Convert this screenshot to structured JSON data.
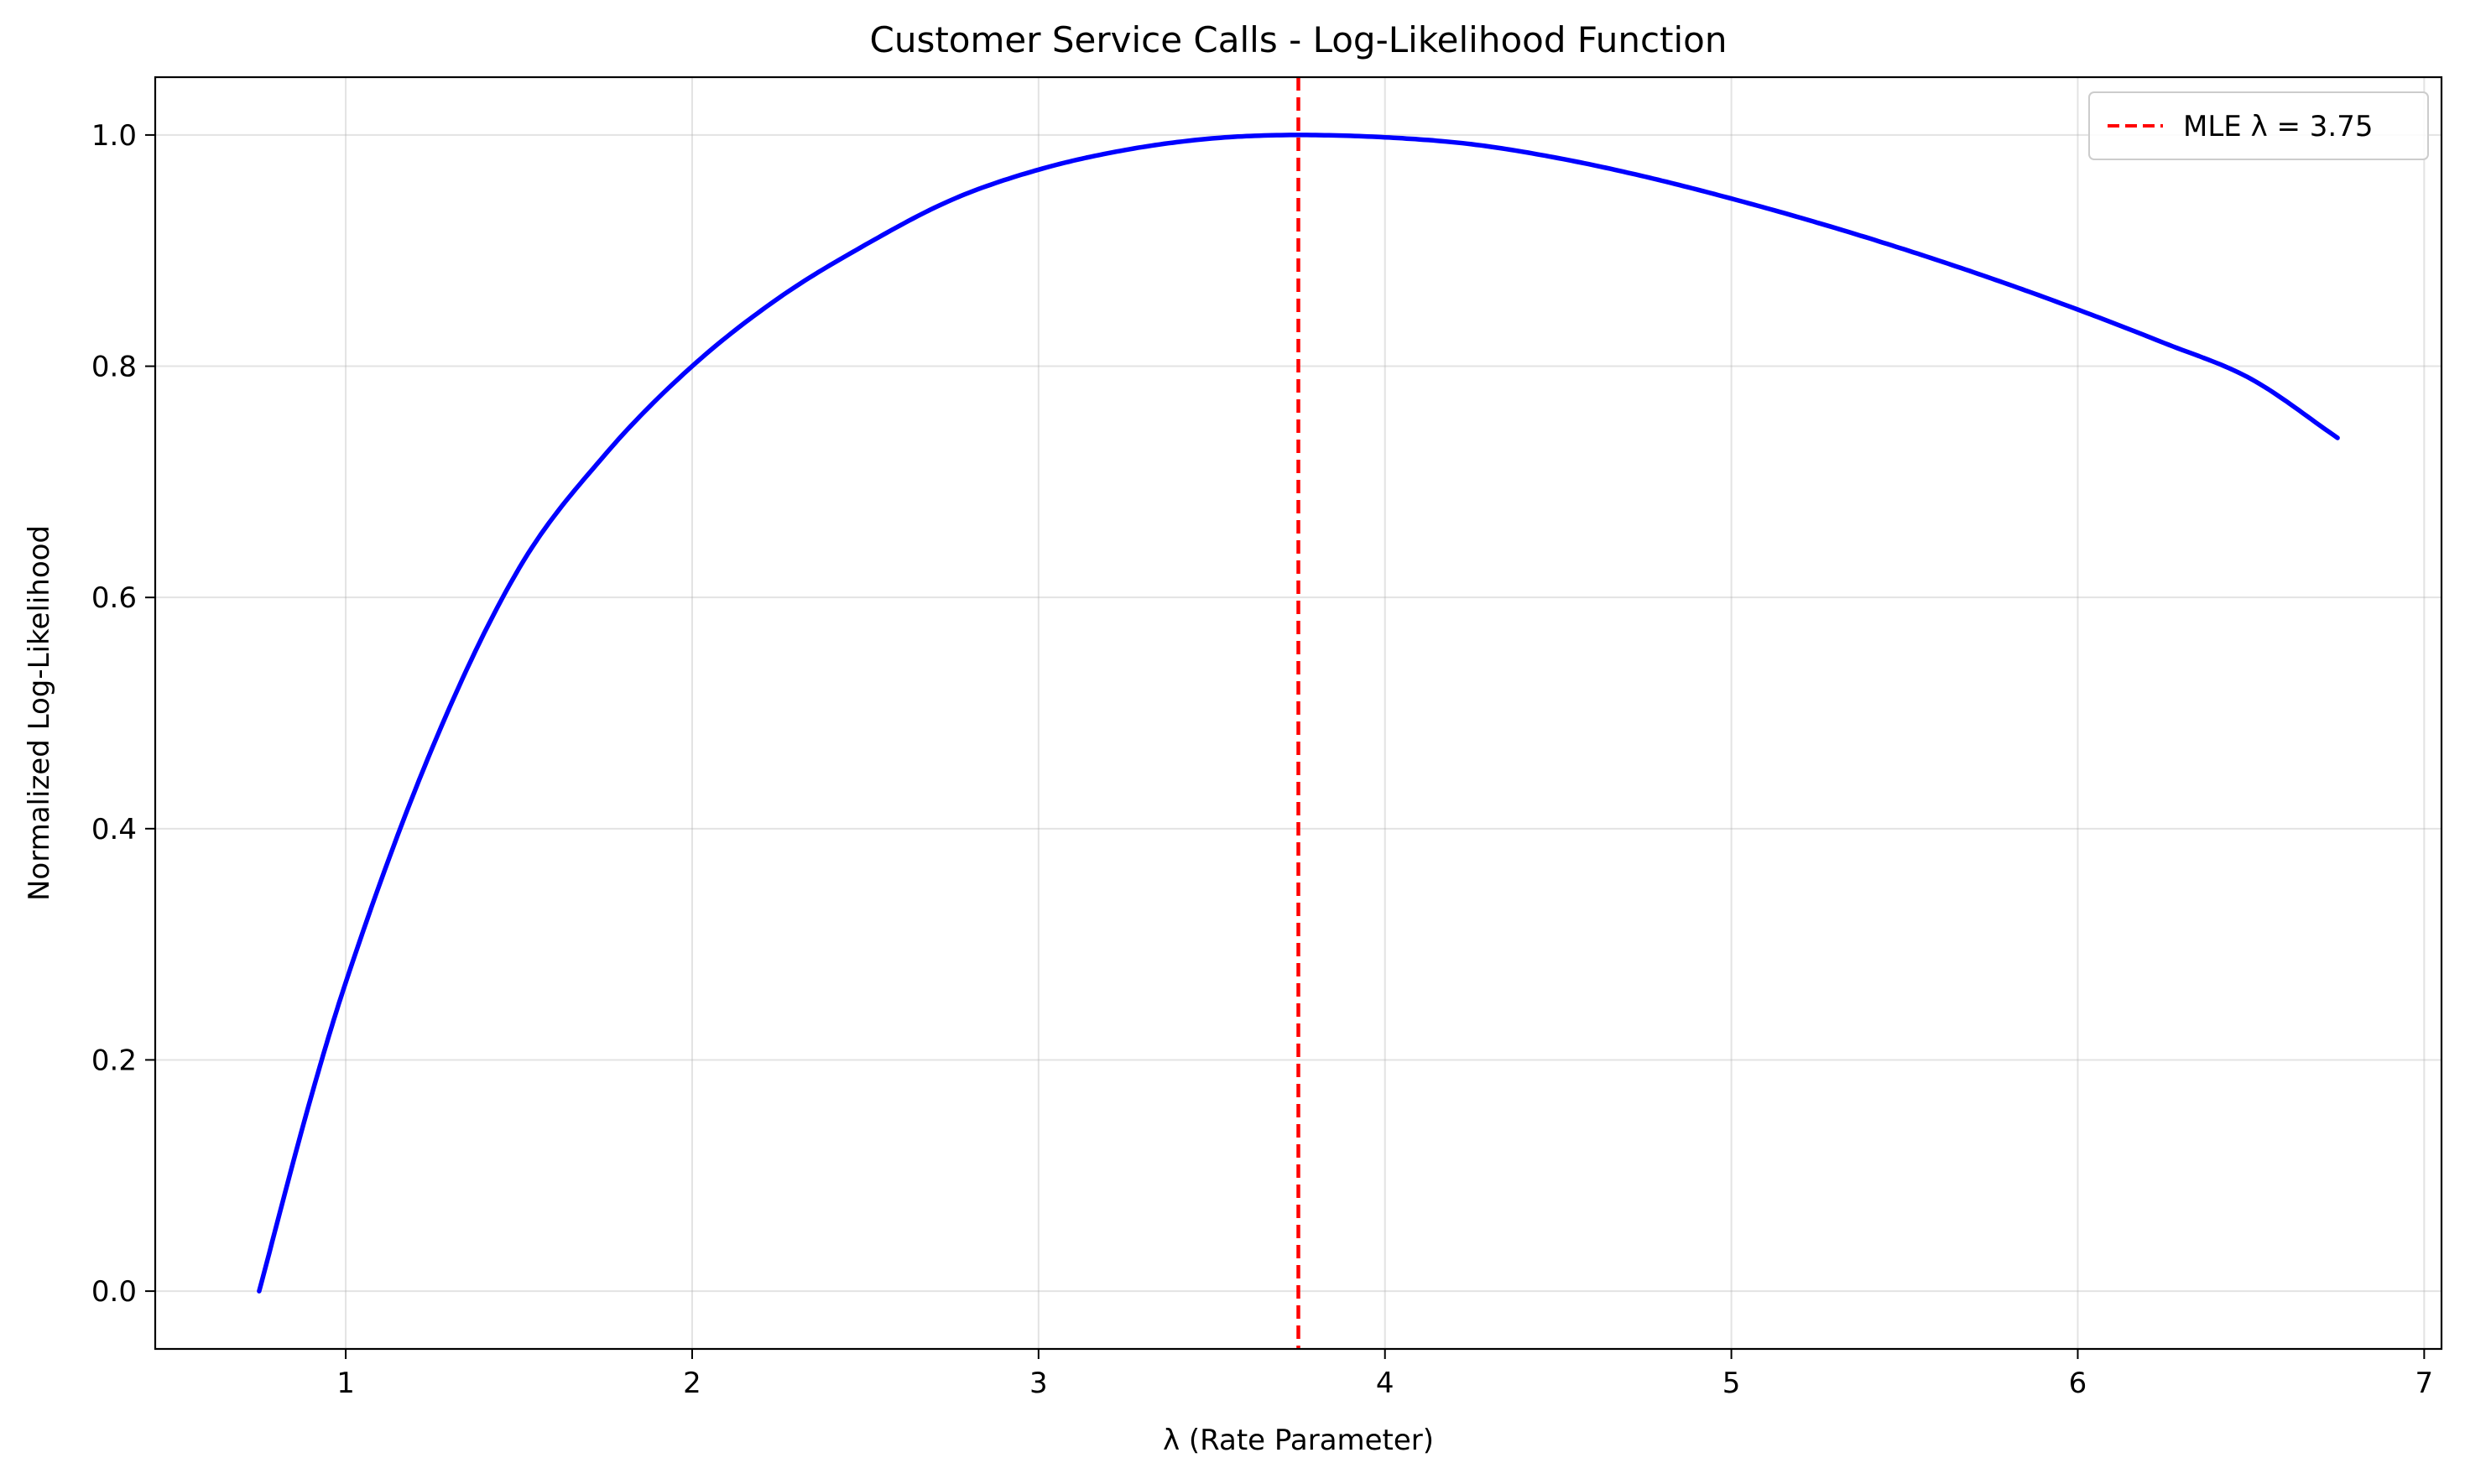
{
  "chart_data": {
    "type": "line",
    "title": "Customer Service Calls - Log-Likelihood Function",
    "xlabel": "λ (Rate Parameter)",
    "ylabel": "Normalized Log-Likelihood",
    "xlim": [
      0.45,
      7.05
    ],
    "ylim": [
      -0.05,
      1.05
    ],
    "xticks": [
      1,
      2,
      3,
      4,
      5,
      6,
      7
    ],
    "xtick_labels": [
      "1",
      "2",
      "3",
      "4",
      "5",
      "6",
      "7"
    ],
    "yticks": [
      0.0,
      0.2,
      0.4,
      0.6,
      0.8,
      1.0
    ],
    "ytick_labels": [
      "0.0",
      "0.2",
      "0.4",
      "0.6",
      "0.8",
      "1.0"
    ],
    "grid": true,
    "legend_position": "top-right",
    "series": [
      {
        "kind": "curve",
        "color": "#0000ff",
        "x": [
          0.75,
          0.9,
          1.0,
          1.25,
          1.5,
          1.75,
          2.0,
          2.25,
          2.5,
          2.75,
          3.0,
          3.25,
          3.5,
          3.75,
          4.0,
          4.25,
          4.5,
          4.75,
          5.0,
          5.25,
          5.5,
          5.75,
          6.0,
          6.25,
          6.5,
          6.75
        ],
        "y": [
          0.0,
          0.168,
          0.267,
          0.47,
          0.625,
          0.724,
          0.8,
          0.859,
          0.905,
          0.944,
          0.97,
          0.987,
          0.997,
          1.0,
          0.998,
          0.992,
          0.98,
          0.964,
          0.945,
          0.924,
          0.901,
          0.876,
          0.849,
          0.82,
          0.789,
          0.738
        ]
      },
      {
        "kind": "vline",
        "name": "MLE λ = 3.75",
        "x": 3.75,
        "color": "#ff0000",
        "style": "dashed"
      }
    ]
  }
}
